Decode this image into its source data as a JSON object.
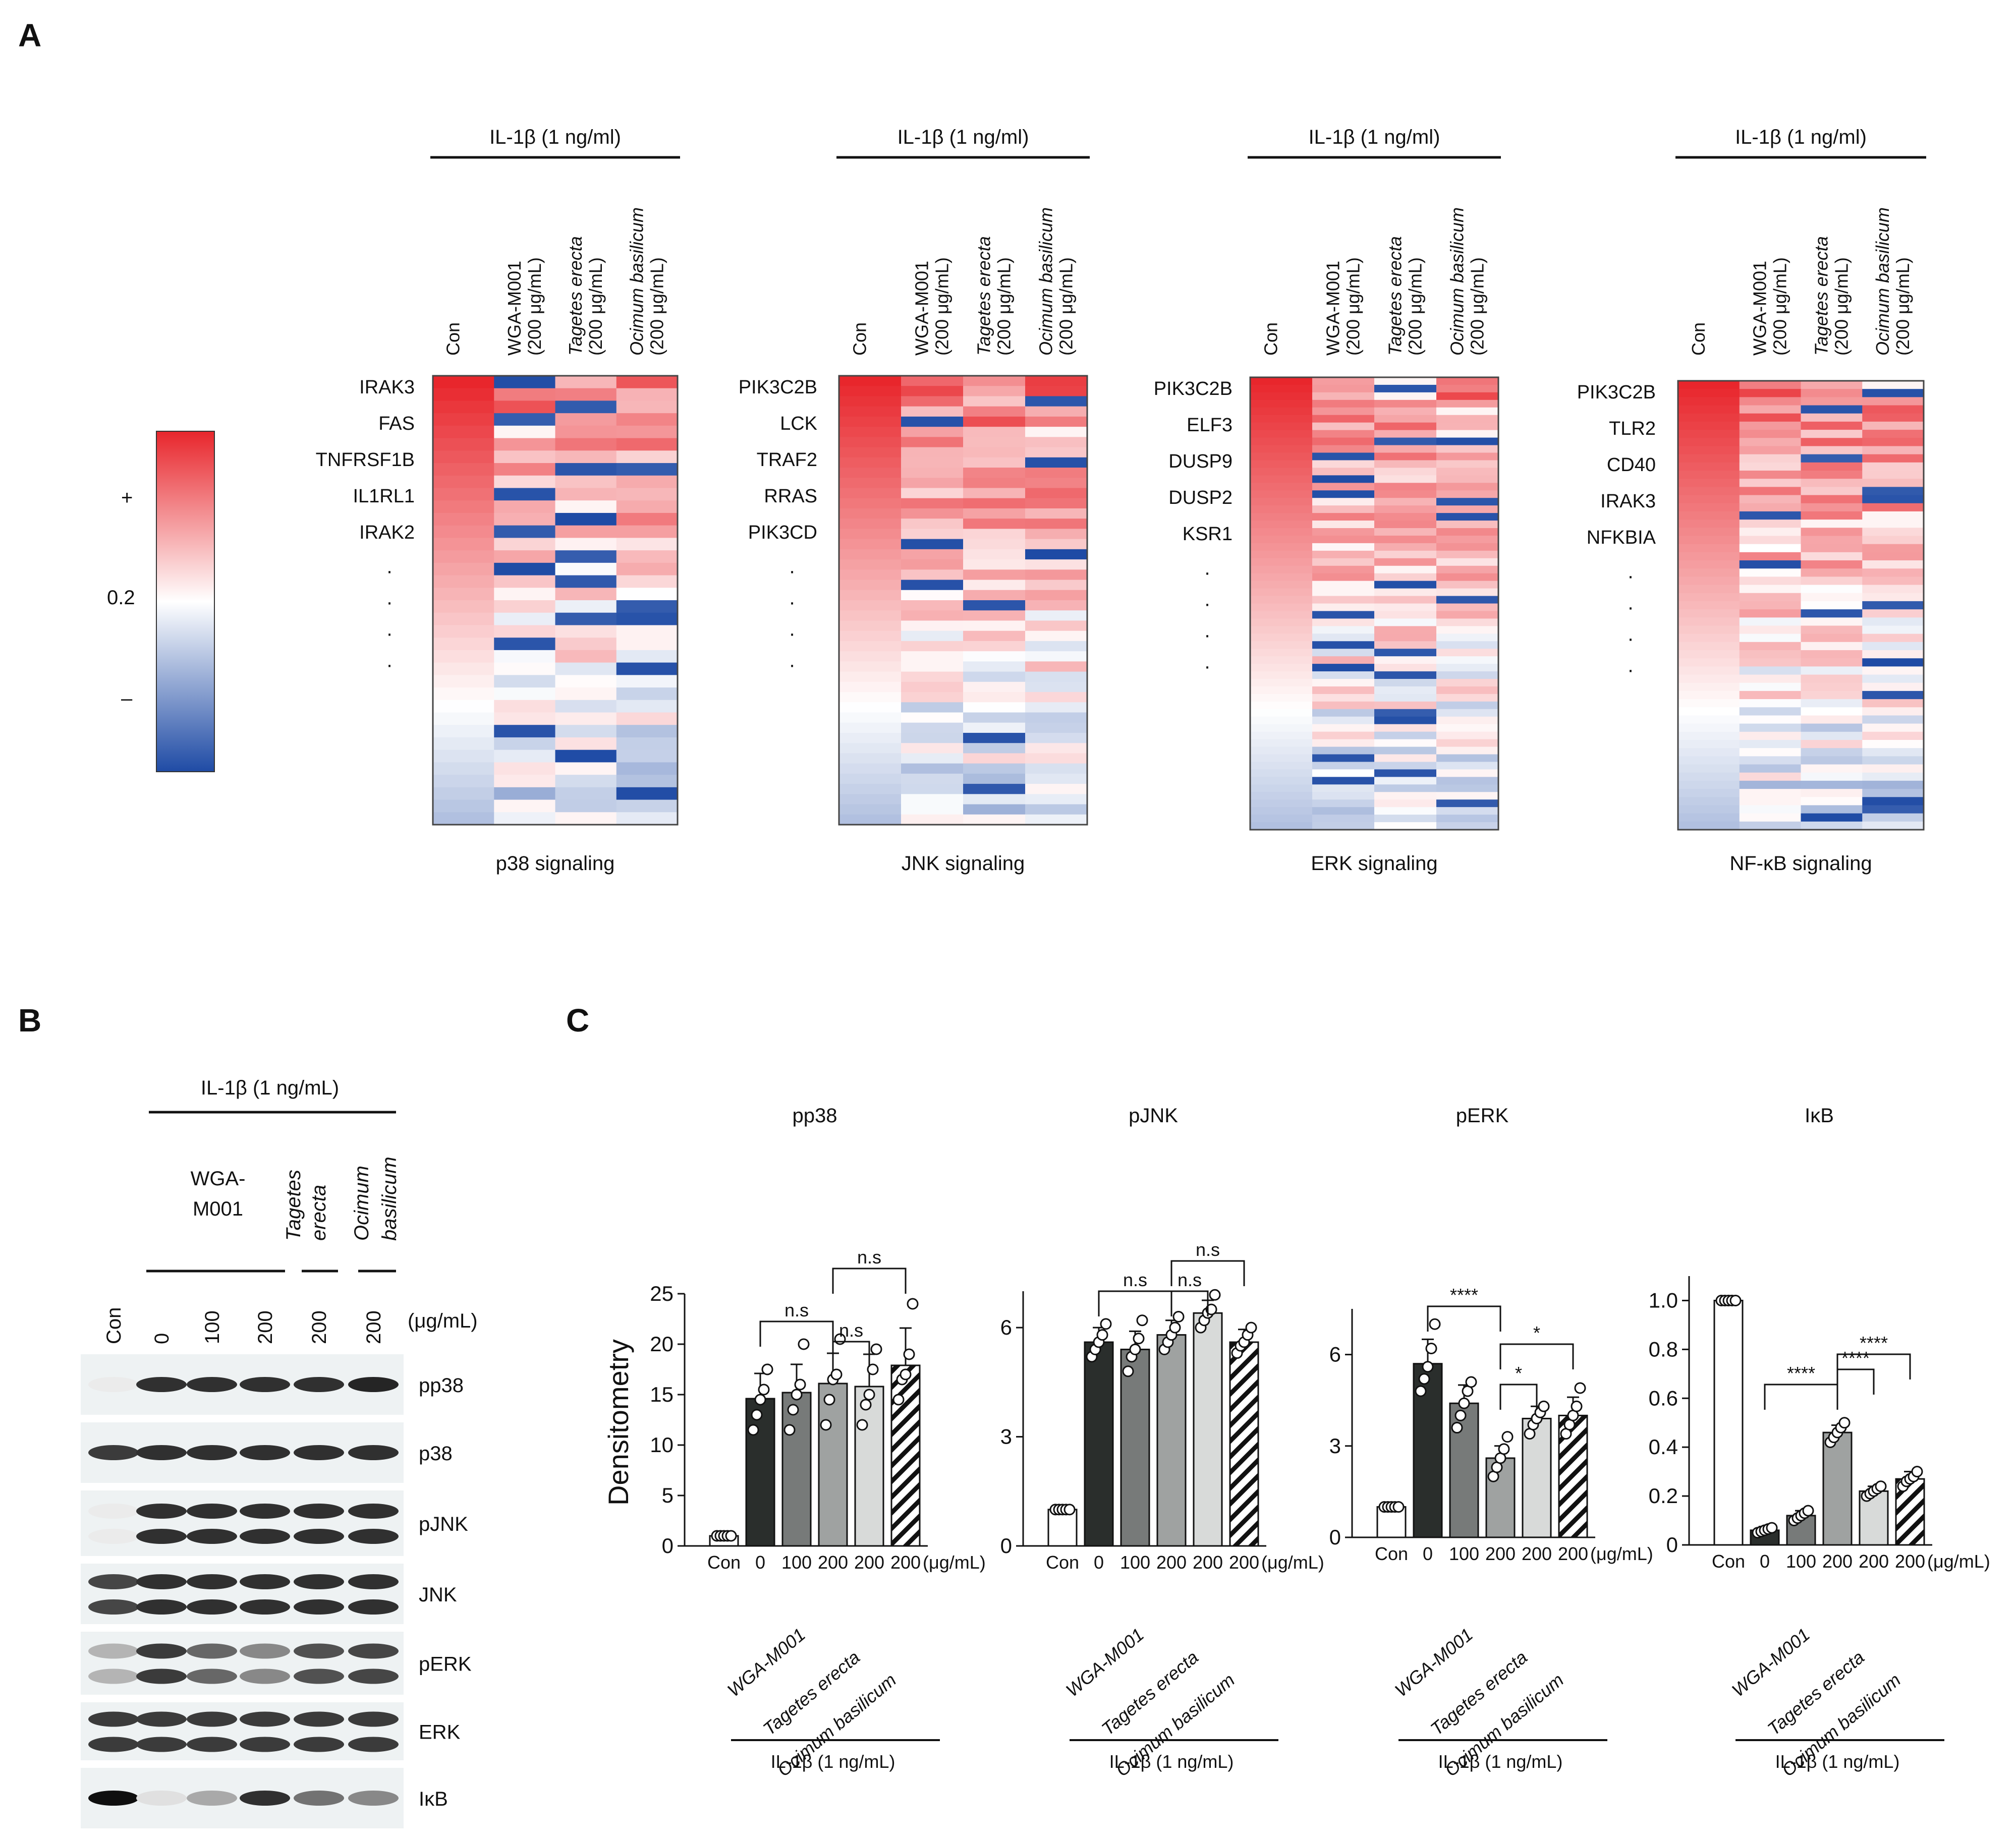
{
  "panel_labels": [
    "A",
    "B",
    "C"
  ],
  "panel_a": {
    "treatment_header": "IL-1β (1 ng/ml)",
    "columns": [
      {
        "line1": "Con",
        "line2": ""
      },
      {
        "line1": "WGA-M001",
        "line2": "(200 μg/mL)"
      },
      {
        "line1": "Tagetes erecta",
        "line2": "(200 μg/mL)"
      },
      {
        "line1": "Ocimum basilicum",
        "line2": "(200 μg/mL)"
      }
    ],
    "colorbar": {
      "plus": "+",
      "mid": "0.2",
      "minus": "–",
      "high_color": "#e8262c",
      "mid_color": "#ffffff",
      "low_color": "#1f4ba5"
    },
    "ellipsis": "·",
    "heatmaps": [
      {
        "title": "p38 signaling",
        "genes": [
          "IRAK3",
          "FAS",
          "TNFRSF1B",
          "IL1RL1",
          "IRAK2"
        ],
        "rows": 36
      },
      {
        "title": "JNK signaling",
        "genes": [
          "PIK3C2B",
          "LCK",
          "TRAF2",
          "RRAS",
          "PIK3CD"
        ],
        "rows": 44
      },
      {
        "title": "ERK signaling",
        "genes": [
          "PIK3C2B",
          "ELF3",
          "DUSP9",
          "DUSP2",
          "KSR1"
        ],
        "rows": 60
      },
      {
        "title": "NF-κB signaling",
        "genes": [
          "PIK3C2B",
          "TLR2",
          "CD40",
          "IRAK3",
          "NFKBIA"
        ],
        "rows": 55
      }
    ]
  },
  "panel_b": {
    "treatment_header": "IL-1β (1 ng/mL)",
    "group_labels": [
      "WGA-",
      "M001",
      "Tagetes",
      "erecta",
      "Ocimum",
      "basilicum"
    ],
    "lanes": [
      "Con",
      "0",
      "100",
      "200",
      "200",
      "200"
    ],
    "unit": "(μg/mL)",
    "blots": [
      {
        "name": "pp38",
        "intensities": [
          0.0,
          0.85,
          0.85,
          0.85,
          0.85,
          0.9
        ]
      },
      {
        "name": "p38",
        "intensities": [
          0.8,
          0.85,
          0.85,
          0.85,
          0.85,
          0.85
        ]
      },
      {
        "name": "pJNK",
        "intensities": [
          0.0,
          0.85,
          0.85,
          0.85,
          0.85,
          0.85
        ]
      },
      {
        "name": "JNK",
        "intensities": [
          0.75,
          0.85,
          0.85,
          0.85,
          0.85,
          0.85
        ]
      },
      {
        "name": "pERK",
        "intensities": [
          0.25,
          0.8,
          0.6,
          0.45,
          0.7,
          0.75
        ]
      },
      {
        "name": "ERK",
        "intensities": [
          0.8,
          0.8,
          0.8,
          0.8,
          0.8,
          0.8
        ]
      },
      {
        "name": "IκB",
        "intensities": [
          1.0,
          0.05,
          0.3,
          0.85,
          0.55,
          0.45
        ]
      }
    ]
  },
  "chart_data": [
    {
      "type": "bar",
      "title": "pp38",
      "ylabel": "Densitometry",
      "ylim": [
        0,
        25
      ],
      "yticks": [
        "0",
        "5",
        "10",
        "15",
        "20",
        "25"
      ],
      "categories": [
        "Con",
        "0",
        "100",
        "200",
        "200",
        "200"
      ],
      "unit": "(μg/mL)",
      "group_labels": [
        "WGA-M001",
        "Tagetes erecta",
        "Ocimum basilicum"
      ],
      "treatment": "IL-1β (1 ng/mL)",
      "values": [
        1.0,
        14.6,
        15.2,
        16.1,
        15.8,
        17.9
      ],
      "errors": [
        0.2,
        2.5,
        2.8,
        3.0,
        3.2,
        3.7
      ],
      "points": [
        [
          1,
          1,
          1,
          1,
          1
        ],
        [
          11.5,
          13,
          14.5,
          15.5,
          17.5
        ],
        [
          11.5,
          13.5,
          15,
          16,
          20
        ],
        [
          12,
          14.5,
          16.5,
          17,
          20.5
        ],
        [
          12,
          14,
          15,
          17.5,
          19.5
        ],
        [
          14.5,
          16.5,
          17,
          19,
          24
        ]
      ],
      "annotations": [
        "n.s",
        "n.s",
        "n.s"
      ]
    },
    {
      "type": "bar",
      "title": "pJNK",
      "ylabel": "",
      "ylim": [
        0,
        7
      ],
      "yticks": [
        "0",
        "3",
        "6"
      ],
      "categories": [
        "Con",
        "0",
        "100",
        "200",
        "200",
        "200"
      ],
      "unit": "(μg/mL)",
      "group_labels": [
        "WGA-M001",
        "Tagetes erecta",
        "Ocimum basilicum"
      ],
      "treatment": "IL-1β (1 ng/mL)",
      "values": [
        1.0,
        5.6,
        5.4,
        5.8,
        6.4,
        5.6
      ],
      "errors": [
        0.1,
        0.4,
        0.5,
        0.4,
        0.35,
        0.35
      ],
      "points": [
        [
          1,
          1,
          1,
          1,
          1
        ],
        [
          5.2,
          5.4,
          5.6,
          5.8,
          6.1
        ],
        [
          4.8,
          5.2,
          5.4,
          5.7,
          6.2
        ],
        [
          5.4,
          5.6,
          5.8,
          6.0,
          6.3
        ],
        [
          6.0,
          6.2,
          6.4,
          6.5,
          6.9
        ],
        [
          5.3,
          5.5,
          5.6,
          5.8,
          6.0
        ]
      ],
      "annotations": [
        "n.s",
        "n.s",
        "n.s"
      ]
    },
    {
      "type": "bar",
      "title": "pERK",
      "ylabel": "",
      "ylim": [
        0,
        7.5
      ],
      "yticks": [
        "0",
        "3",
        "6"
      ],
      "categories": [
        "Con",
        "0",
        "100",
        "200",
        "200",
        "200"
      ],
      "unit": "(μg/mL)",
      "group_labels": [
        "WGA-M001",
        "Tagetes erecta",
        "Ocimum basilicum"
      ],
      "treatment": "IL-1β (1 ng/mL)",
      "values": [
        1.0,
        5.7,
        4.4,
        2.6,
        3.9,
        4.0
      ],
      "errors": [
        0.1,
        0.8,
        0.6,
        0.4,
        0.4,
        0.6
      ],
      "points": [
        [
          1,
          1,
          1,
          1,
          1
        ],
        [
          4.8,
          5.2,
          5.6,
          6.2,
          7.0
        ],
        [
          3.6,
          4.0,
          4.4,
          4.8,
          5.1
        ],
        [
          2.0,
          2.3,
          2.6,
          2.9,
          3.3
        ],
        [
          3.4,
          3.7,
          3.9,
          4.1,
          4.3
        ],
        [
          3.4,
          3.7,
          4.0,
          4.3,
          4.9
        ]
      ],
      "annotations": [
        "****",
        "*",
        "*"
      ]
    },
    {
      "type": "bar",
      "title": "IκB",
      "ylabel": "",
      "ylim": [
        0,
        1.1
      ],
      "yticks": [
        "0",
        "0.2",
        "0.4",
        "0.6",
        "0.8",
        "1.0"
      ],
      "categories": [
        "Con",
        "0",
        "100",
        "200",
        "200",
        "200"
      ],
      "unit": "(μg/mL)",
      "group_labels": [
        "WGA-M001",
        "Tagetes erecta",
        "Ocimum basilicum"
      ],
      "treatment": "IL-1β (1 ng/mL)",
      "values": [
        1.0,
        0.06,
        0.12,
        0.46,
        0.22,
        0.27
      ],
      "errors": [
        0.01,
        0.015,
        0.02,
        0.03,
        0.02,
        0.03
      ],
      "points": [
        [
          1,
          1,
          1,
          1,
          1
        ],
        [
          0.05,
          0.055,
          0.06,
          0.065,
          0.07
        ],
        [
          0.1,
          0.11,
          0.12,
          0.13,
          0.14
        ],
        [
          0.42,
          0.44,
          0.46,
          0.48,
          0.5
        ],
        [
          0.2,
          0.21,
          0.22,
          0.23,
          0.24
        ],
        [
          0.24,
          0.26,
          0.27,
          0.28,
          0.3
        ]
      ],
      "annotations": [
        "****",
        "****",
        "****"
      ]
    }
  ]
}
